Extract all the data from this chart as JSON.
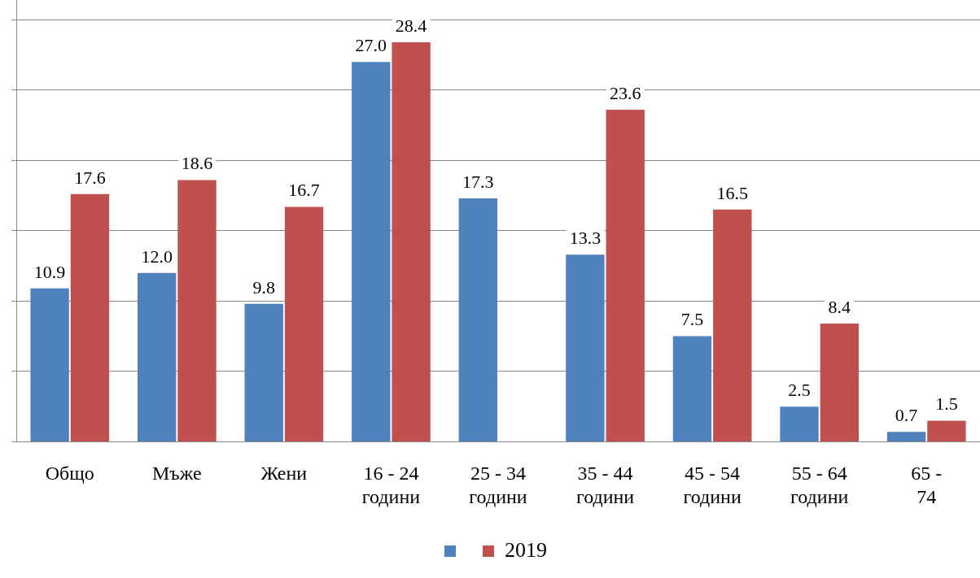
{
  "chart_data": {
    "type": "bar",
    "categories": [
      "Общо",
      "Мъже",
      "Жени",
      "16 - 24 години",
      "25 - 34 години",
      "35 - 44 години",
      "45 - 54 години",
      "55 - 64 години",
      "65 - 74"
    ],
    "series": [
      {
        "color": "#4f81bd",
        "values": [
          10.9,
          12.0,
          9.8,
          27.0,
          17.3,
          13.3,
          7.5,
          2.5,
          0.7
        ],
        "value_labels": [
          "10.9",
          "12.0",
          "9.8",
          "27.0",
          "17.3",
          "13.3",
          "7.5",
          "2.5",
          "0.7"
        ]
      },
      {
        "name": "2019",
        "color": "#c0504d",
        "values": [
          17.6,
          18.6,
          16.7,
          28.4,
          null,
          23.6,
          16.5,
          8.4,
          1.5
        ],
        "value_labels": [
          "17.6",
          "18.6",
          "16.7",
          "28.4",
          null,
          "23.6",
          "16.5",
          "8.4",
          "1.5"
        ]
      }
    ],
    "ylim": [
      0,
      31.4
    ],
    "yticks": [
      {
        "value": 0,
        "label": null
      },
      {
        "value": 5,
        "label": null
      },
      {
        "value": 10,
        "label": null
      },
      {
        "value": 15,
        "label": null
      },
      {
        "value": 20,
        "label": null
      },
      {
        "value": 25,
        "label": null
      },
      {
        "value": 30,
        "label": null
      }
    ],
    "tick_labels": "x",
    "grid": "y",
    "legend": "bottom"
  }
}
